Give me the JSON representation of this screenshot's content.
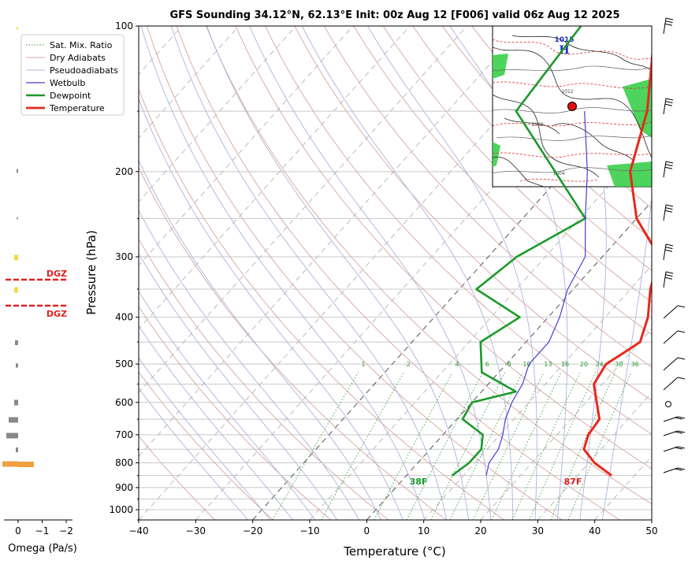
{
  "chart_data": {
    "type": "line",
    "title": "GFS Sounding 34.12°N, 62.13°E Init: 00z Aug 12 [F006] valid 06z Aug 12 2025",
    "xlabel": "Temperature (°C)",
    "ylabel": "Pressure (hPa)",
    "xlim": [
      -40,
      50
    ],
    "ylim": [
      1050,
      100
    ],
    "yscale": "log",
    "x_ticks": [
      "−40",
      "−30",
      "−20",
      "−10",
      "0",
      "10",
      "20",
      "30",
      "40",
      "50"
    ],
    "y_ticks": [
      "100",
      "200",
      "300",
      "400",
      "500",
      "600",
      "700",
      "800",
      "900",
      "1000"
    ],
    "y_tick_values": [
      100,
      200,
      300,
      400,
      500,
      600,
      700,
      800,
      900,
      1000
    ],
    "legend": {
      "position": "top-left",
      "entries": [
        "Sat. Mix. Ratio",
        "Dry Adiabats",
        "Pseudoadiabats",
        "Wetbulb",
        "Dewpoint",
        "Temperature"
      ]
    },
    "mixing_ratio_labels": [
      "1",
      "2",
      "4",
      "6",
      "8",
      "10",
      "13",
      "16",
      "20",
      "24",
      "30",
      "36"
    ],
    "series": [
      {
        "name": "Temperature",
        "color": "#e8281a",
        "points": [
          [
            36,
            850
          ],
          [
            31,
            800
          ],
          [
            27,
            750
          ],
          [
            25.5,
            700
          ],
          [
            25,
            650
          ],
          [
            18.5,
            550
          ],
          [
            17.5,
            500
          ],
          [
            19,
            470
          ],
          [
            20,
            450
          ],
          [
            17.5,
            400
          ],
          [
            13.5,
            350
          ],
          [
            10,
            300
          ],
          [
            0,
            250
          ],
          [
            -8.5,
            200
          ],
          [
            -15,
            150
          ],
          [
            -27,
            100
          ]
        ]
      },
      {
        "name": "Dewpoint",
        "color": "#1a9a2a",
        "points": [
          [
            8,
            850
          ],
          [
            9,
            800
          ],
          [
            9,
            750
          ],
          [
            7,
            700
          ],
          [
            1,
            650
          ],
          [
            0,
            600
          ],
          [
            6,
            570
          ],
          [
            -3,
            520
          ],
          [
            -8,
            450
          ],
          [
            -5,
            400
          ],
          [
            -17,
            350
          ],
          [
            -15,
            300
          ],
          [
            -9,
            250
          ],
          [
            -38,
            150
          ],
          [
            -40,
            100
          ]
        ]
      },
      {
        "name": "Wetbulb",
        "color": "#4a3ad8",
        "points": [
          [
            14,
            850
          ],
          [
            12.5,
            800
          ],
          [
            12,
            750
          ],
          [
            10.5,
            700
          ],
          [
            8.5,
            650
          ],
          [
            7,
            600
          ],
          [
            6,
            550
          ],
          [
            4,
            500
          ],
          [
            4,
            450
          ],
          [
            2,
            400
          ],
          [
            -1,
            350
          ],
          [
            -3,
            300
          ],
          [
            -9,
            250
          ],
          [
            -16,
            200
          ],
          [
            -26,
            150
          ]
        ]
      }
    ],
    "surface_labels": {
      "dewpoint": "38F",
      "temperature": "87F"
    },
    "omega": {
      "xlabel": "Omega (Pa/s)",
      "ticks": [
        "0",
        "−1",
        "−2"
      ],
      "dgz_label": "DGZ",
      "dgz_levels": [
        340,
        385
      ]
    },
    "inset_map": {
      "high_label": "H",
      "pressure_label": "1015",
      "isobar_labels": [
        "1004",
        "1008",
        "1012"
      ]
    }
  }
}
